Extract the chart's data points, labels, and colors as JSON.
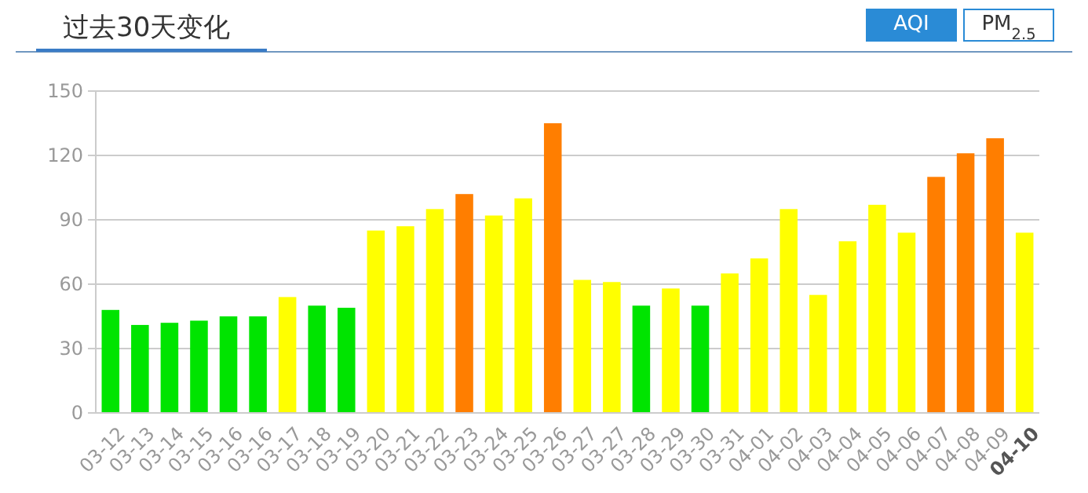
{
  "chart_data": {
    "type": "bar",
    "title": "过去30天变化",
    "categories": [
      "03-12",
      "03-13",
      "03-14",
      "03-15",
      "03-16",
      "03-16",
      "03-17",
      "03-18",
      "03-19",
      "03-20",
      "03-21",
      "03-22",
      "03-23",
      "03-24",
      "03-25",
      "03-26",
      "03-27",
      "03-27",
      "03-28",
      "03-29",
      "03-30",
      "03-31",
      "04-01",
      "04-02",
      "04-03",
      "04-04",
      "04-05",
      "04-06",
      "04-07",
      "04-08",
      "04-09",
      "04-10"
    ],
    "values": [
      48,
      41,
      42,
      43,
      45,
      45,
      54,
      50,
      49,
      85,
      87,
      95,
      102,
      92,
      100,
      135,
      62,
      61,
      50,
      58,
      50,
      65,
      72,
      95,
      55,
      80,
      97,
      84,
      110,
      121,
      128,
      84
    ],
    "colors": [
      "#00e400",
      "#00e400",
      "#00e400",
      "#00e400",
      "#00e400",
      "#00e400",
      "#ffff00",
      "#00e400",
      "#00e400",
      "#ffff00",
      "#ffff00",
      "#ffff00",
      "#ff7e00",
      "#ffff00",
      "#ffff00",
      "#ff7e00",
      "#ffff00",
      "#ffff00",
      "#00e400",
      "#ffff00",
      "#00e400",
      "#ffff00",
      "#ffff00",
      "#ffff00",
      "#ffff00",
      "#ffff00",
      "#ffff00",
      "#ffff00",
      "#ff7e00",
      "#ff7e00",
      "#ff7e00",
      "#ffff00"
    ],
    "ylim": [
      0,
      150
    ],
    "yticks": [
      0,
      30,
      60,
      90,
      120,
      150
    ],
    "grid": "y",
    "annotations": [
      "AQI",
      "PM$_{2.5}$"
    ]
  }
}
